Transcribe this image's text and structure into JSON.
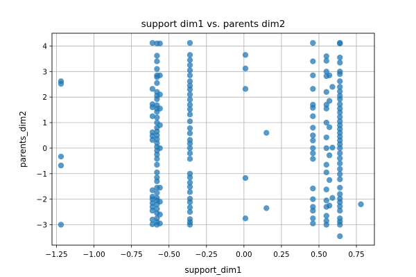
{
  "chart_data": {
    "type": "scatter",
    "title": "support dim1 vs. parents dim2",
    "xlabel": "support_dim1",
    "ylabel": "parents_dim2",
    "xlim": [
      -1.28,
      0.87
    ],
    "ylim": [
      -3.8,
      4.5
    ],
    "xticks": [
      -1.25,
      -1.0,
      -0.75,
      -0.5,
      -0.25,
      0.0,
      0.25,
      0.5,
      0.75
    ],
    "xtick_labels": [
      "−1.25",
      "−1.00",
      "−0.75",
      "−0.50",
      "−0.25",
      "0.00",
      "0.25",
      "0.50",
      "0.75"
    ],
    "yticks": [
      -3,
      -2,
      -1,
      0,
      1,
      2,
      3,
      4
    ],
    "ytick_labels": [
      "−3",
      "−2",
      "−1",
      "0",
      "1",
      "2",
      "3",
      "4"
    ],
    "grid": true,
    "marker_color": "#1f77b4",
    "series": [
      {
        "points": [
          [
            -1.22,
            2.62
          ],
          [
            -1.22,
            2.52
          ],
          [
            -1.22,
            -0.33
          ],
          [
            -1.22,
            -0.68
          ],
          [
            -1.22,
            -3.0
          ],
          [
            -0.61,
            4.12
          ],
          [
            -0.61,
            2.32
          ],
          [
            -0.61,
            1.72
          ],
          [
            -0.61,
            1.6
          ],
          [
            -0.61,
            1.25
          ],
          [
            -0.61,
            0.62
          ],
          [
            -0.61,
            0.48
          ],
          [
            -0.61,
            0.32
          ],
          [
            -0.61,
            -1.65
          ],
          [
            -0.61,
            -1.9
          ],
          [
            -0.61,
            -2.0
          ],
          [
            -0.61,
            -2.15
          ],
          [
            -0.61,
            -2.3
          ],
          [
            -0.61,
            -2.45
          ],
          [
            -0.61,
            -2.8
          ],
          [
            -0.61,
            -2.98
          ],
          [
            -0.58,
            4.1
          ],
          [
            -0.58,
            3.62
          ],
          [
            -0.58,
            3.4
          ],
          [
            -0.58,
            3.1
          ],
          [
            -0.58,
            2.85
          ],
          [
            -0.58,
            2.78
          ],
          [
            -0.58,
            2.55
          ],
          [
            -0.58,
            2.2
          ],
          [
            -0.58,
            2.05
          ],
          [
            -0.58,
            1.92
          ],
          [
            -0.58,
            1.68
          ],
          [
            -0.58,
            1.55
          ],
          [
            -0.58,
            1.42
          ],
          [
            -0.58,
            1.2
          ],
          [
            -0.58,
            1.0
          ],
          [
            -0.58,
            0.8
          ],
          [
            -0.58,
            0.65
          ],
          [
            -0.58,
            0.5
          ],
          [
            -0.58,
            0.35
          ],
          [
            -0.58,
            0.2
          ],
          [
            -0.58,
            0.05
          ],
          [
            -0.58,
            -0.1
          ],
          [
            -0.58,
            -0.25
          ],
          [
            -0.58,
            -0.42
          ],
          [
            -0.58,
            -0.65
          ],
          [
            -0.58,
            -0.95
          ],
          [
            -0.58,
            -1.15
          ],
          [
            -0.58,
            -1.3
          ],
          [
            -0.58,
            -1.55
          ],
          [
            -0.58,
            -1.75
          ],
          [
            -0.58,
            -1.95
          ],
          [
            -0.58,
            -2.05
          ],
          [
            -0.58,
            -2.2
          ],
          [
            -0.58,
            -2.38
          ],
          [
            -0.58,
            -2.55
          ],
          [
            -0.58,
            -2.75
          ],
          [
            -0.58,
            -2.9
          ],
          [
            -0.58,
            -3.0
          ],
          [
            -0.56,
            4.1
          ],
          [
            -0.56,
            2.85
          ],
          [
            -0.56,
            2.1
          ],
          [
            -0.56,
            1.55
          ],
          [
            -0.56,
            0.9
          ],
          [
            -0.56,
            0.0
          ],
          [
            -0.56,
            -1.55
          ],
          [
            -0.56,
            -2.1
          ],
          [
            -0.56,
            -2.6
          ],
          [
            -0.56,
            -2.95
          ],
          [
            -0.36,
            4.12
          ],
          [
            -0.36,
            3.65
          ],
          [
            -0.36,
            3.45
          ],
          [
            -0.36,
            3.25
          ],
          [
            -0.36,
            3.05
          ],
          [
            -0.36,
            2.85
          ],
          [
            -0.36,
            2.62
          ],
          [
            -0.36,
            2.45
          ],
          [
            -0.36,
            2.3
          ],
          [
            -0.36,
            2.1
          ],
          [
            -0.36,
            1.9
          ],
          [
            -0.36,
            1.7
          ],
          [
            -0.36,
            1.52
          ],
          [
            -0.36,
            1.32
          ],
          [
            -0.36,
            1.05
          ],
          [
            -0.36,
            0.78
          ],
          [
            -0.36,
            0.58
          ],
          [
            -0.36,
            0.32
          ],
          [
            -0.36,
            0.18
          ],
          [
            -0.36,
            0.0
          ],
          [
            -0.36,
            -0.2
          ],
          [
            -0.36,
            -0.42
          ],
          [
            -0.36,
            -1.0
          ],
          [
            -0.36,
            -1.15
          ],
          [
            -0.36,
            -1.35
          ],
          [
            -0.36,
            -1.52
          ],
          [
            -0.36,
            -1.72
          ],
          [
            -0.36,
            -1.98
          ],
          [
            -0.36,
            -2.12
          ],
          [
            -0.36,
            -2.32
          ],
          [
            -0.36,
            -2.5
          ],
          [
            -0.36,
            -2.78
          ],
          [
            -0.36,
            -2.9
          ],
          [
            -0.36,
            -3.0
          ],
          [
            0.01,
            3.65
          ],
          [
            0.01,
            3.12
          ],
          [
            0.01,
            2.32
          ],
          [
            0.01,
            -1.17
          ],
          [
            0.01,
            -2.75
          ],
          [
            0.15,
            0.6
          ],
          [
            0.15,
            -2.35
          ],
          [
            0.46,
            4.12
          ],
          [
            0.46,
            3.4
          ],
          [
            0.46,
            2.85
          ],
          [
            0.46,
            2.32
          ],
          [
            0.46,
            1.7
          ],
          [
            0.46,
            1.58
          ],
          [
            0.46,
            1.25
          ],
          [
            0.46,
            0.8
          ],
          [
            0.46,
            0.5
          ],
          [
            0.46,
            0.3
          ],
          [
            0.46,
            0.0
          ],
          [
            0.46,
            -0.2
          ],
          [
            0.46,
            -0.42
          ],
          [
            0.46,
            -1.58
          ],
          [
            0.46,
            -2.0
          ],
          [
            0.46,
            -2.3
          ],
          [
            0.46,
            -2.45
          ],
          [
            0.46,
            -2.75
          ],
          [
            0.46,
            -2.95
          ],
          [
            0.55,
            3.6
          ],
          [
            0.55,
            3.42
          ],
          [
            0.55,
            3.0
          ],
          [
            0.55,
            2.82
          ],
          [
            0.55,
            2.2
          ],
          [
            0.55,
            1.7
          ],
          [
            0.55,
            1.55
          ],
          [
            0.55,
            1.0
          ],
          [
            0.55,
            0.42
          ],
          [
            0.55,
            0.0
          ],
          [
            0.55,
            -0.65
          ],
          [
            0.55,
            -0.95
          ],
          [
            0.55,
            -1.62
          ],
          [
            0.55,
            -2.05
          ],
          [
            0.55,
            -2.3
          ],
          [
            0.55,
            -2.65
          ],
          [
            0.55,
            -2.85
          ],
          [
            0.55,
            -3.0
          ],
          [
            0.57,
            2.85
          ],
          [
            0.57,
            1.85
          ],
          [
            0.57,
            0.82
          ],
          [
            0.57,
            -0.28
          ],
          [
            0.57,
            -1.25
          ],
          [
            0.57,
            -2.25
          ],
          [
            0.59,
            2.4
          ],
          [
            0.59,
            0.02
          ],
          [
            0.59,
            -1.95
          ],
          [
            0.64,
            4.12
          ],
          [
            0.64,
            4.1
          ],
          [
            0.64,
            3.55
          ],
          [
            0.64,
            3.35
          ],
          [
            0.64,
            3.0
          ],
          [
            0.64,
            2.9
          ],
          [
            0.64,
            2.62
          ],
          [
            0.64,
            2.4
          ],
          [
            0.64,
            2.22
          ],
          [
            0.64,
            2.05
          ],
          [
            0.64,
            1.92
          ],
          [
            0.64,
            1.72
          ],
          [
            0.64,
            1.55
          ],
          [
            0.64,
            1.4
          ],
          [
            0.64,
            1.22
          ],
          [
            0.64,
            1.05
          ],
          [
            0.64,
            0.9
          ],
          [
            0.64,
            0.75
          ],
          [
            0.64,
            0.6
          ],
          [
            0.64,
            0.45
          ],
          [
            0.64,
            0.3
          ],
          [
            0.64,
            0.15
          ],
          [
            0.64,
            0.0
          ],
          [
            0.64,
            -0.2
          ],
          [
            0.64,
            -0.4
          ],
          [
            0.64,
            -0.6
          ],
          [
            0.64,
            -0.82
          ],
          [
            0.64,
            -1.02
          ],
          [
            0.64,
            -1.22
          ],
          [
            0.64,
            -1.55
          ],
          [
            0.64,
            -1.8
          ],
          [
            0.64,
            -1.98
          ],
          [
            0.64,
            -2.12
          ],
          [
            0.64,
            -2.28
          ],
          [
            0.64,
            -2.45
          ],
          [
            0.64,
            -2.75
          ],
          [
            0.64,
            -2.88
          ],
          [
            0.64,
            -3.0
          ],
          [
            0.64,
            -3.45
          ],
          [
            0.78,
            -2.2
          ]
        ]
      }
    ]
  }
}
